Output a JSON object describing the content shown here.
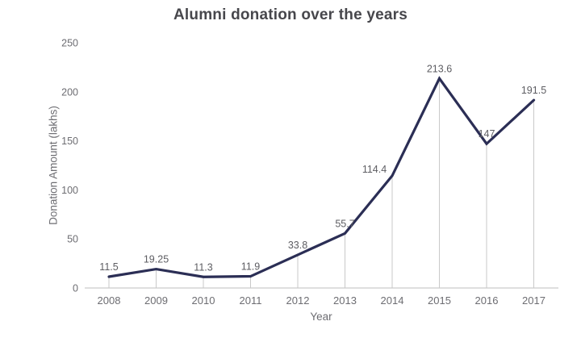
{
  "chart_data": {
    "type": "line",
    "title": "Alumni donation over the years",
    "xlabel": "Year",
    "ylabel": "Donation Amount (lakhs)",
    "categories": [
      "2008",
      "2009",
      "2010",
      "2011",
      "2012",
      "2013",
      "2014",
      "2015",
      "2016",
      "2017"
    ],
    "values": [
      11.5,
      19.25,
      11.3,
      11.9,
      33.8,
      55.7,
      114.4,
      213.6,
      147,
      191.5
    ],
    "data_labels": [
      "11.5",
      "19.25",
      "11.3",
      "11.9",
      "33.8",
      "55.7",
      "114.4",
      "213.6",
      "147",
      "191.5"
    ],
    "yticks": [
      0,
      50,
      100,
      150,
      200,
      250
    ],
    "ylim": [
      0,
      250
    ],
    "grid": false,
    "drop_lines": true,
    "legend": "none",
    "colors": {
      "line": "#2b2e55",
      "drop_line": "#c9c9c9",
      "axis": "#c9c9c9",
      "tick_text": "#6d6d72",
      "data_label_text": "#5d5d62",
      "title_text": "#47474c"
    }
  }
}
